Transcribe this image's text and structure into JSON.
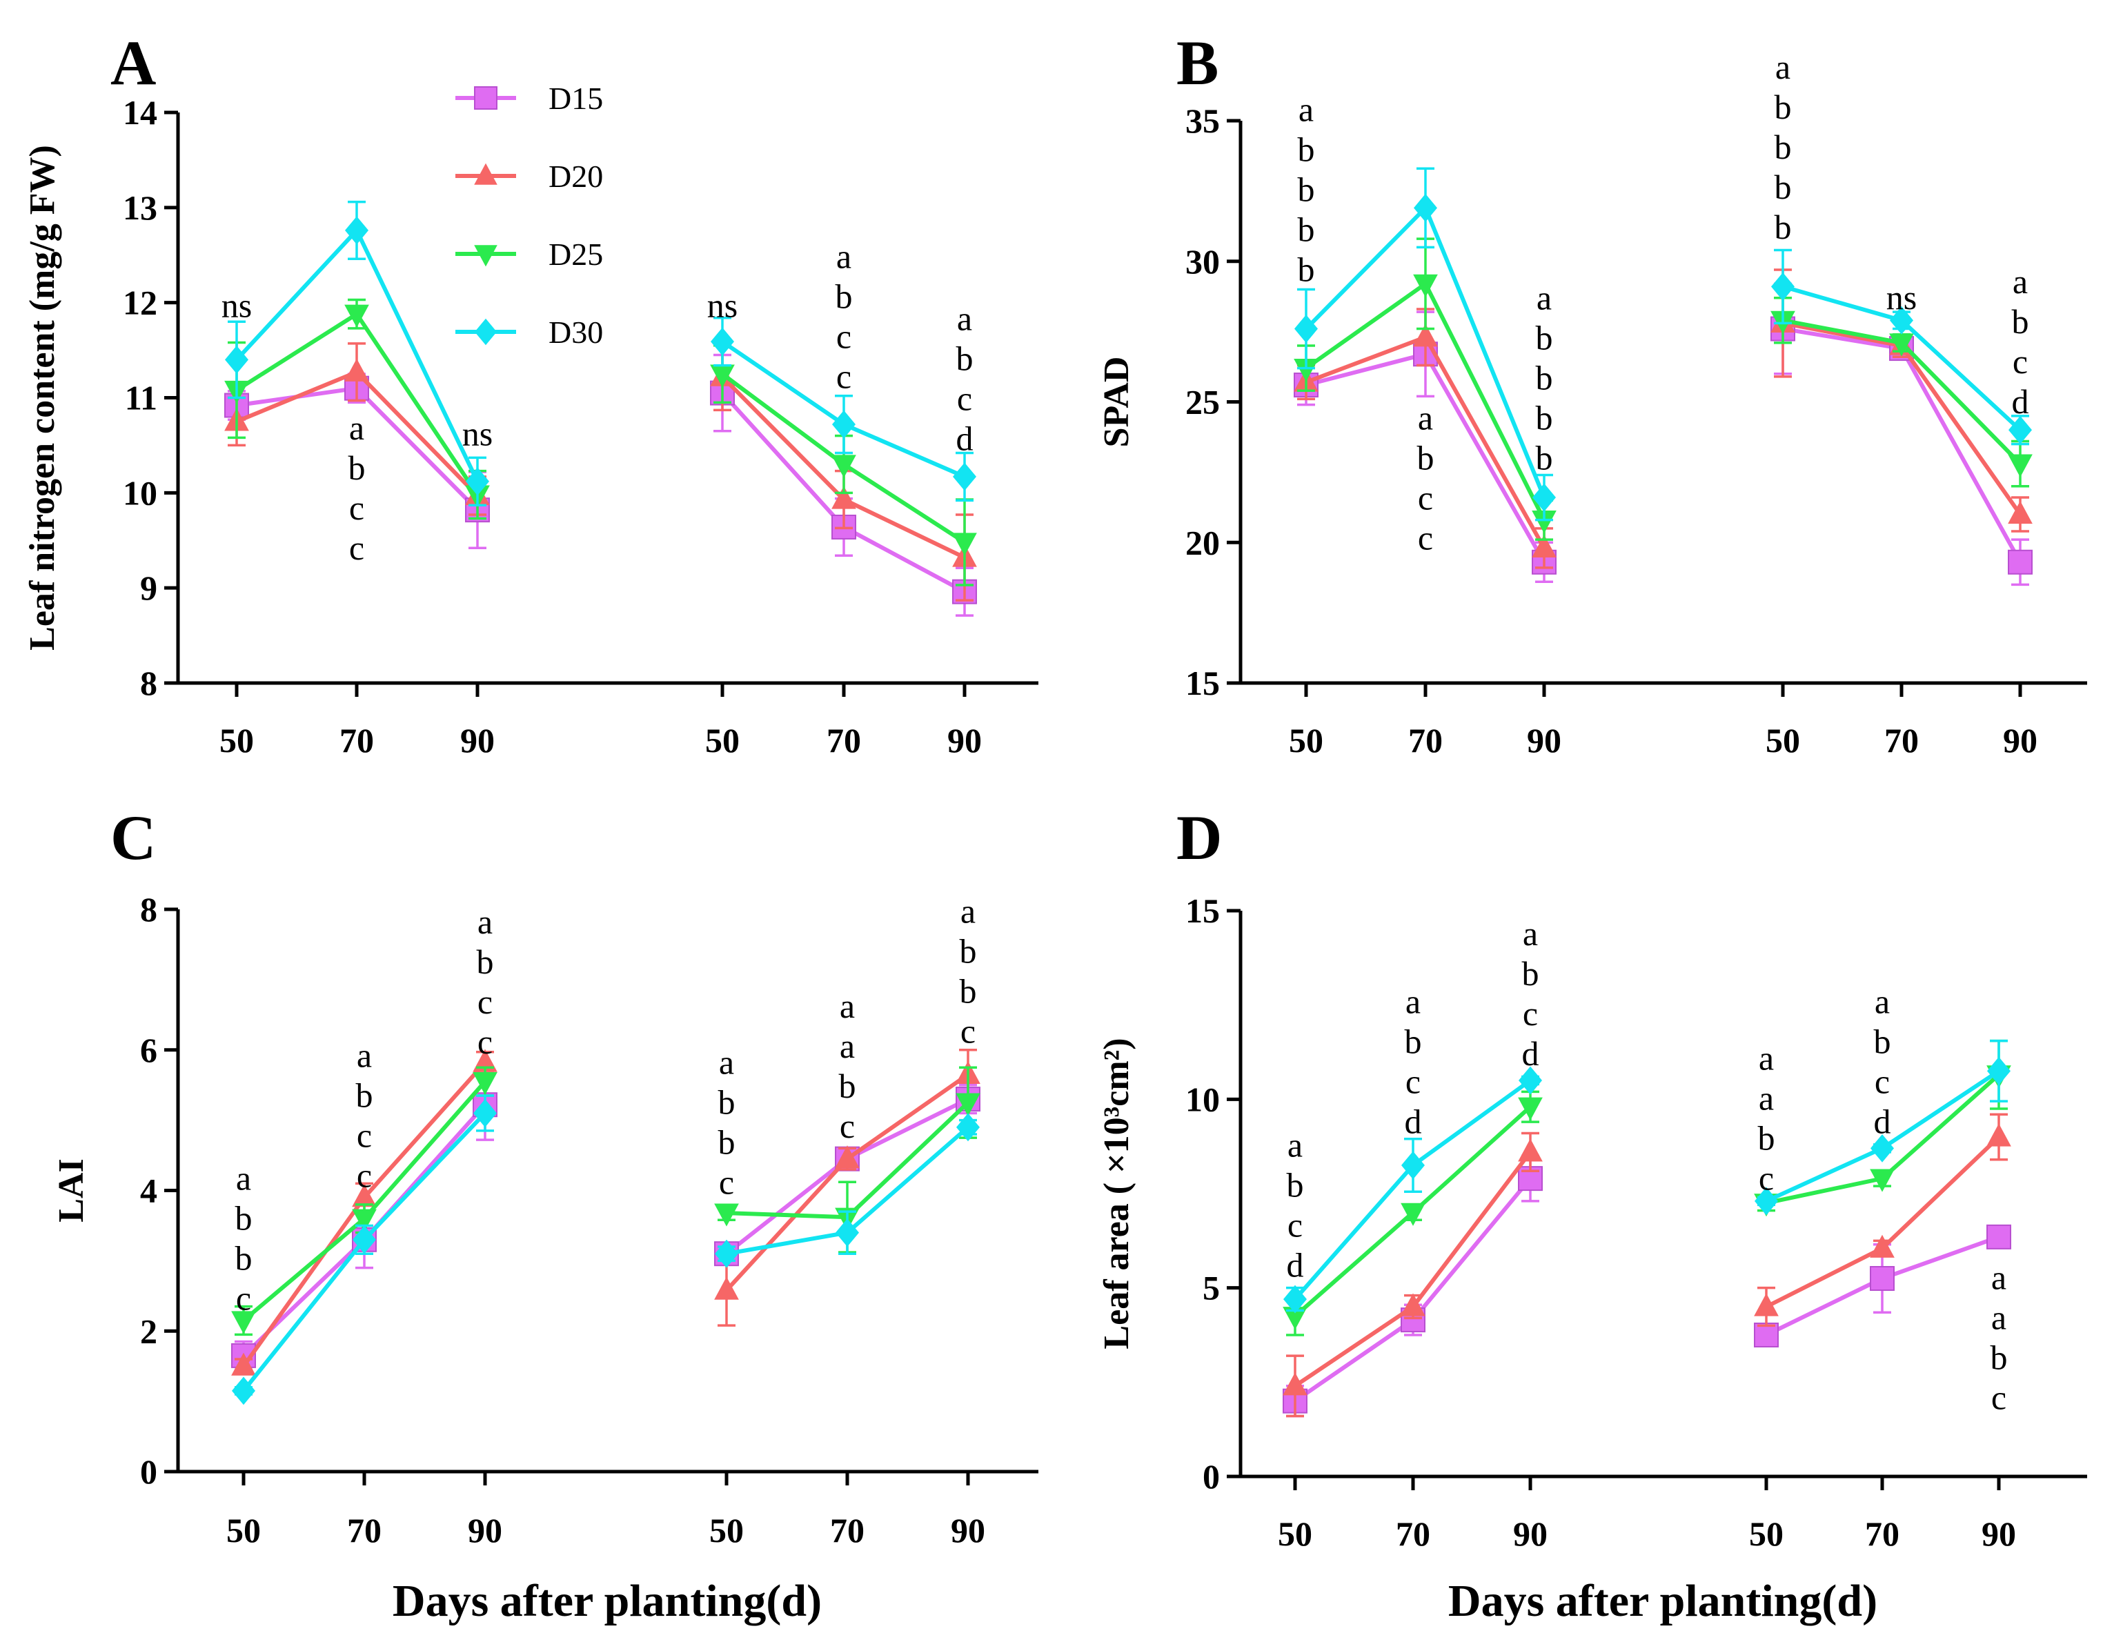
{
  "legend": {
    "items": [
      {
        "name": "D15",
        "color": "#df6cf2",
        "marker": "square"
      },
      {
        "name": "D20",
        "color": "#f66666",
        "marker": "triangle-up"
      },
      {
        "name": "D25",
        "color": "#2bea4e",
        "marker": "triangle-down"
      },
      {
        "name": "D30",
        "color": "#12e4f2",
        "marker": "diamond"
      }
    ]
  },
  "x_axis_title": "Days after planting(d)",
  "chart_data": [
    {
      "panel": "A",
      "type": "line",
      "ylabel": "Leaf nitrogen content (mg/g FW)",
      "ylim": [
        8,
        14
      ],
      "yticks": [
        8,
        9,
        10,
        11,
        12,
        13,
        14
      ],
      "groups": [
        {
          "x": [
            "50",
            "70",
            "90"
          ],
          "series": [
            {
              "name": "D15",
              "values": [
                10.92,
                11.1,
                9.82
              ],
              "errors": [
                0.15,
                0.15,
                0.4
              ]
            },
            {
              "name": "D20",
              "values": [
                10.75,
                11.27,
                9.97
              ],
              "errors": [
                0.25,
                0.3,
                0.2
              ]
            },
            {
              "name": "D25",
              "values": [
                11.08,
                11.88,
                9.98
              ],
              "errors": [
                0.5,
                0.15,
                0.25
              ]
            },
            {
              "name": "D30",
              "values": [
                11.4,
                12.76,
                10.12
              ],
              "errors": [
                0.4,
                0.3,
                0.25
              ]
            }
          ],
          "annotations": [
            {
              "x": "50",
              "anchor": 11.85,
              "pos": "above",
              "letters": [
                "ns"
              ]
            },
            {
              "x": "70",
              "anchor": 10.85,
              "pos": "below",
              "letters": [
                "a",
                "b",
                "c",
                "c"
              ]
            },
            {
              "x": "90",
              "anchor": 10.5,
              "pos": "above",
              "letters": [
                "ns"
              ]
            }
          ]
        },
        {
          "x": [
            "50",
            "70",
            "90"
          ],
          "series": [
            {
              "name": "D15",
              "values": [
                11.05,
                9.64,
                8.96
              ],
              "errors": [
                0.4,
                0.3,
                0.25
              ]
            },
            {
              "name": "D20",
              "values": [
                11.22,
                9.93,
                9.32
              ],
              "errors": [
                0.35,
                0.3,
                0.45
              ]
            },
            {
              "name": "D25",
              "values": [
                11.25,
                10.3,
                9.48
              ],
              "errors": [
                0.3,
                0.3,
                0.45
              ]
            },
            {
              "name": "D30",
              "values": [
                11.59,
                10.72,
                10.17
              ],
              "errors": [
                0.25,
                0.3,
                0.25
              ]
            }
          ],
          "annotations": [
            {
              "x": "50",
              "anchor": 11.85,
              "pos": "above",
              "letters": [
                "ns"
              ]
            },
            {
              "x": "70",
              "anchor": 11.1,
              "pos": "above",
              "letters": [
                "a",
                "b",
                "c",
                "c"
              ]
            },
            {
              "x": "90",
              "anchor": 10.45,
              "pos": "above",
              "letters": [
                "a",
                "b",
                "c",
                "d"
              ]
            }
          ]
        }
      ]
    },
    {
      "panel": "B",
      "type": "line",
      "ylabel": "SPAD",
      "ylim": [
        15,
        35
      ],
      "yticks": [
        15,
        20,
        25,
        30,
        35
      ],
      "groups": [
        {
          "x": [
            "50",
            "70",
            "90"
          ],
          "series": [
            {
              "name": "D15",
              "values": [
                25.6,
                26.7,
                19.3
              ],
              "errors": [
                0.7,
                1.5,
                0.7
              ]
            },
            {
              "name": "D20",
              "values": [
                25.7,
                27.3,
                19.8
              ],
              "errors": [
                0.6,
                1.0,
                0.7
              ]
            },
            {
              "name": "D25",
              "values": [
                26.2,
                29.2,
                20.8
              ],
              "errors": [
                0.8,
                1.6,
                0.7
              ]
            },
            {
              "name": "D30",
              "values": [
                27.6,
                31.9,
                21.6
              ],
              "errors": [
                1.4,
                1.4,
                0.8
              ]
            }
          ],
          "annotations": [
            {
              "x": "50",
              "anchor": 29.3,
              "pos": "above",
              "letters": [
                "a",
                "b",
                "b",
                "b",
                "b"
              ]
            },
            {
              "x": "70",
              "anchor": 25.0,
              "pos": "below",
              "letters": [
                "a",
                "b",
                "c",
                "c"
              ]
            },
            {
              "x": "90",
              "anchor": 22.6,
              "pos": "above",
              "letters": [
                "a",
                "b",
                "b",
                "b",
                "b"
              ]
            }
          ]
        },
        {
          "x": [
            "50",
            "70",
            "90"
          ],
          "series": [
            {
              "name": "D15",
              "values": [
                27.6,
                26.9,
                19.3
              ],
              "errors": [
                1.6,
                0.3,
                0.8
              ]
            },
            {
              "name": "D20",
              "values": [
                27.8,
                27.0,
                21.0
              ],
              "errors": [
                1.9,
                0.4,
                0.6
              ]
            },
            {
              "name": "D25",
              "values": [
                27.9,
                27.1,
                22.8
              ],
              "errors": [
                0.8,
                0.3,
                0.8
              ]
            },
            {
              "name": "D30",
              "values": [
                29.1,
                27.9,
                24.0
              ],
              "errors": [
                1.3,
                0.3,
                0.5
              ]
            }
          ],
          "annotations": [
            {
              "x": "50",
              "anchor": 30.8,
              "pos": "above",
              "letters": [
                "a",
                "b",
                "b",
                "b",
                "b"
              ]
            },
            {
              "x": "70",
              "anchor": 28.3,
              "pos": "above",
              "letters": [
                "ns"
              ]
            },
            {
              "x": "90",
              "anchor": 24.6,
              "pos": "above",
              "letters": [
                "a",
                "b",
                "c",
                "d"
              ]
            }
          ]
        }
      ]
    },
    {
      "panel": "C",
      "type": "line",
      "ylabel": "LAI",
      "ylim": [
        0,
        8
      ],
      "yticks": [
        0,
        2,
        4,
        6,
        8
      ],
      "groups": [
        {
          "x": [
            "50",
            "70",
            "90"
          ],
          "series": [
            {
              "name": "D15",
              "values": [
                1.65,
                3.3,
                5.22
              ],
              "errors": [
                0.2,
                0.4,
                0.5
              ]
            },
            {
              "name": "D20",
              "values": [
                1.5,
                3.9,
                5.82
              ],
              "errors": [
                0.1,
                0.2,
                0.15
              ]
            },
            {
              "name": "D25",
              "values": [
                2.15,
                3.6,
                5.55
              ],
              "errors": [
                0.2,
                0.2,
                0.2
              ]
            },
            {
              "name": "D30",
              "values": [
                1.15,
                3.3,
                5.1
              ],
              "errors": [
                0.05,
                0.2,
                0.25
              ]
            }
          ],
          "annotations": [
            {
              "x": "50",
              "anchor": 2.3,
              "pos": "above",
              "letters": [
                "a",
                "b",
                "b",
                "c"
              ]
            },
            {
              "x": "70",
              "anchor": 4.05,
              "pos": "above",
              "letters": [
                "a",
                "b",
                "c",
                "c"
              ]
            },
            {
              "x": "90",
              "anchor": 5.95,
              "pos": "above",
              "letters": [
                "a",
                "b",
                "c",
                "c"
              ]
            }
          ]
        },
        {
          "x": [
            "50",
            "70",
            "90"
          ],
          "series": [
            {
              "name": "D15",
              "values": [
                3.1,
                4.45,
                5.3
              ],
              "errors": [
                0.1,
                0.15,
                0.2
              ]
            },
            {
              "name": "D20",
              "values": [
                2.58,
                4.45,
                5.65
              ],
              "errors": [
                0.5,
                0.15,
                0.35
              ]
            },
            {
              "name": "D25",
              "values": [
                3.68,
                3.62,
                5.25
              ],
              "errors": [
                0.1,
                0.5,
                0.5
              ]
            },
            {
              "name": "D30",
              "values": [
                3.1,
                3.4,
                4.9
              ],
              "errors": [
                0.1,
                0.3,
                0.1
              ]
            }
          ],
          "annotations": [
            {
              "x": "50",
              "anchor": 3.95,
              "pos": "above",
              "letters": [
                "a",
                "b",
                "b",
                "c"
              ]
            },
            {
              "x": "70",
              "anchor": 4.75,
              "pos": "above",
              "letters": [
                "a",
                "a",
                "b",
                "c"
              ]
            },
            {
              "x": "90",
              "anchor": 6.1,
              "pos": "above",
              "letters": [
                "a",
                "b",
                "b",
                "c"
              ]
            }
          ]
        }
      ]
    },
    {
      "panel": "D",
      "type": "line",
      "ylabel": "Leaf area ( ×10³cm²)",
      "ylim": [
        0,
        15
      ],
      "yticks": [
        0,
        5,
        10,
        15
      ],
      "groups": [
        {
          "x": [
            "50",
            "70",
            "90"
          ],
          "series": [
            {
              "name": "D15",
              "values": [
                2.0,
                4.15,
                7.9
              ],
              "errors": [
                0.4,
                0.4,
                0.6
              ]
            },
            {
              "name": "D20",
              "values": [
                2.4,
                4.5,
                8.6
              ],
              "errors": [
                0.8,
                0.3,
                0.5
              ]
            },
            {
              "name": "D25",
              "values": [
                4.25,
                7.0,
                9.8
              ],
              "errors": [
                0.5,
                0.2,
                0.4
              ]
            },
            {
              "name": "D30",
              "values": [
                4.7,
                8.25,
                10.5
              ],
              "errors": [
                0.3,
                0.7,
                0.1
              ]
            }
          ],
          "annotations": [
            {
              "x": "50",
              "anchor": 5.3,
              "pos": "above",
              "letters": [
                "a",
                "b",
                "c",
                "d"
              ]
            },
            {
              "x": "70",
              "anchor": 9.1,
              "pos": "above",
              "letters": [
                "a",
                "b",
                "c",
                "d"
              ]
            },
            {
              "x": "90",
              "anchor": 10.9,
              "pos": "above",
              "letters": [
                "a",
                "b",
                "c",
                "d"
              ]
            }
          ]
        },
        {
          "x": [
            "50",
            "70",
            "90"
          ],
          "series": [
            {
              "name": "D15",
              "values": [
                3.75,
                5.25,
                6.35
              ],
              "errors": [
                0.2,
                0.9,
                0.15
              ]
            },
            {
              "name": "D20",
              "values": [
                4.5,
                6.05,
                9.0
              ],
              "errors": [
                0.5,
                0.2,
                0.6
              ]
            },
            {
              "name": "D25",
              "values": [
                7.25,
                7.9,
                10.65
              ],
              "errors": [
                0.2,
                0.2,
                0.9
              ]
            },
            {
              "name": "D30",
              "values": [
                7.3,
                8.7,
                10.75
              ],
              "errors": [
                0.1,
                0.1,
                0.8
              ]
            }
          ],
          "annotations": [
            {
              "x": "50",
              "anchor": 7.6,
              "pos": "above",
              "letters": [
                "a",
                "a",
                "b",
                "c"
              ]
            },
            {
              "x": "70",
              "anchor": 9.1,
              "pos": "above",
              "letters": [
                "a",
                "b",
                "c",
                "d"
              ]
            },
            {
              "x": "90",
              "anchor": 5.7,
              "pos": "below",
              "letters": [
                "a",
                "a",
                "b",
                "c"
              ]
            }
          ]
        }
      ]
    }
  ]
}
